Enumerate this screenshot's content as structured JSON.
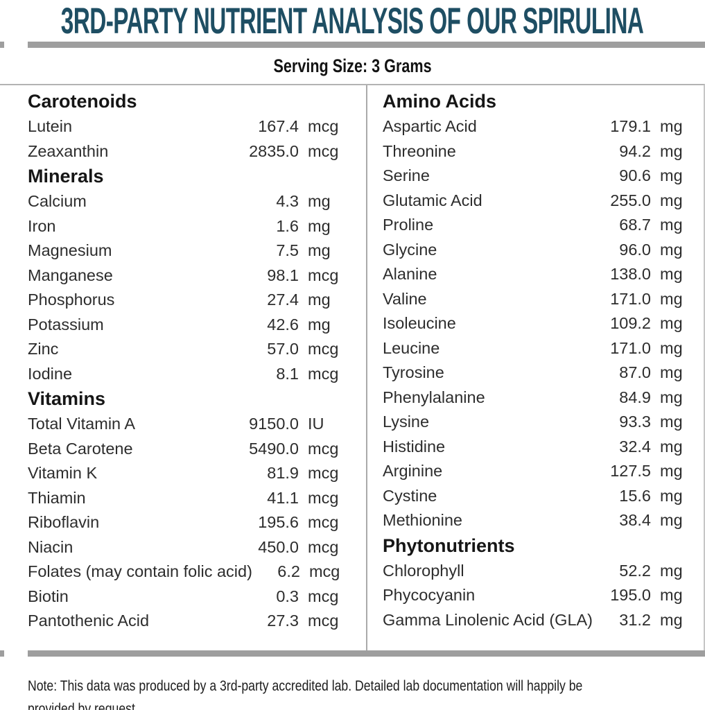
{
  "title": "3RD-PARTY NUTRIENT ANALYSIS OF OUR SPIRULINA",
  "serving_size": "Serving Size: 3 Grams",
  "colors": {
    "title_teal": "#1e4e63",
    "bar_gray": "#9e9e9e",
    "rule_gray": "#b3b3b3",
    "text_dark": "#2d2d2d"
  },
  "table": {
    "columns": [
      {
        "name": "left",
        "sections": [
          {
            "header": "Carotenoids",
            "rows": [
              {
                "label": "Lutein",
                "value": "167.4",
                "unit": "mcg"
              },
              {
                "label": "Zeaxanthin",
                "value": "2835.0",
                "unit": "mcg"
              }
            ]
          },
          {
            "header": "Minerals",
            "rows": [
              {
                "label": "Calcium",
                "value": "4.3",
                "unit": "mg"
              },
              {
                "label": "Iron",
                "value": "1.6",
                "unit": "mg"
              },
              {
                "label": "Magnesium",
                "value": "7.5",
                "unit": "mg"
              },
              {
                "label": "Manganese",
                "value": "98.1",
                "unit": "mcg"
              },
              {
                "label": "Phosphorus",
                "value": "27.4",
                "unit": "mg"
              },
              {
                "label": "Potassium",
                "value": "42.6",
                "unit": "mg"
              },
              {
                "label": "Zinc",
                "value": "57.0",
                "unit": "mcg"
              },
              {
                "label": "Iodine",
                "value": "8.1",
                "unit": "mcg"
              }
            ]
          },
          {
            "header": "Vitamins",
            "rows": [
              {
                "label": "Total Vitamin A",
                "value": "9150.0",
                "unit": "IU"
              },
              {
                "label": "Beta Carotene",
                "value": "5490.0",
                "unit": "mcg"
              },
              {
                "label": "Vitamin K",
                "value": "81.9",
                "unit": "mcg"
              },
              {
                "label": "Thiamin",
                "value": "41.1",
                "unit": "mcg"
              },
              {
                "label": "Riboflavin",
                "value": "195.6",
                "unit": "mcg"
              },
              {
                "label": "Niacin",
                "value": "450.0",
                "unit": "mcg"
              },
              {
                "label": "Folates (may contain folic acid)",
                "value": "6.2",
                "unit": "mcg"
              },
              {
                "label": "Biotin",
                "value": "0.3",
                "unit": "mcg"
              },
              {
                "label": "Pantothenic Acid",
                "value": "27.3",
                "unit": "mcg"
              }
            ]
          }
        ]
      },
      {
        "name": "right",
        "sections": [
          {
            "header": "Amino Acids",
            "rows": [
              {
                "label": "Aspartic Acid",
                "value": "179.1",
                "unit": "mg"
              },
              {
                "label": "Threonine",
                "value": "94.2",
                "unit": "mg"
              },
              {
                "label": "Serine",
                "value": "90.6",
                "unit": "mg"
              },
              {
                "label": "Glutamic Acid",
                "value": "255.0",
                "unit": "mg"
              },
              {
                "label": "Proline",
                "value": "68.7",
                "unit": "mg"
              },
              {
                "label": "Glycine",
                "value": "96.0",
                "unit": "mg"
              },
              {
                "label": "Alanine",
                "value": "138.0",
                "unit": "mg"
              },
              {
                "label": "Valine",
                "value": "171.0",
                "unit": "mg"
              },
              {
                "label": "Isoleucine",
                "value": "109.2",
                "unit": "mg"
              },
              {
                "label": "Leucine",
                "value": "171.0",
                "unit": "mg"
              },
              {
                "label": "Tyrosine",
                "value": "87.0",
                "unit": "mg"
              },
              {
                "label": "Phenylalanine",
                "value": "84.9",
                "unit": "mg"
              },
              {
                "label": "Lysine",
                "value": "93.3",
                "unit": "mg"
              },
              {
                "label": "Histidine",
                "value": "32.4",
                "unit": "mg"
              },
              {
                "label": "Arginine",
                "value": "127.5",
                "unit": "mg"
              },
              {
                "label": "Cystine",
                "value": "15.6",
                "unit": "mg"
              },
              {
                "label": "Methionine",
                "value": "38.4",
                "unit": "mg"
              }
            ]
          },
          {
            "header": "Phytonutrients",
            "rows": [
              {
                "label": "Chlorophyll",
                "value": "52.2",
                "unit": "mg"
              },
              {
                "label": "Phycocyanin",
                "value": "195.0",
                "unit": "mg"
              },
              {
                "label": "Gamma Linolenic Acid (GLA)",
                "value": "31.2",
                "unit": "mg"
              }
            ]
          }
        ]
      }
    ]
  },
  "footnote": {
    "line1": "Note: This data was produced by a 3rd-party accredited lab. Detailed lab documentation will happily be",
    "line2": "provided by request."
  }
}
